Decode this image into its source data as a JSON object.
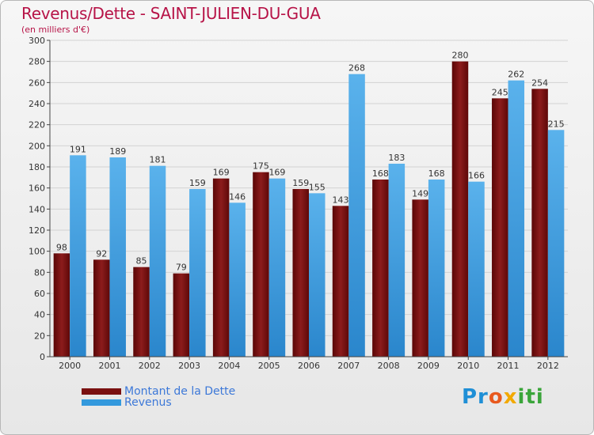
{
  "title": "Revenus/Dette - SAINT-JULIEN-DU-GUA",
  "subtitle": "(en milliers d'€)",
  "logo_text": "Proxiti",
  "colors": {
    "dette": "#7a1010",
    "revenus": "#3399dd",
    "title": "#b71448",
    "legend_text": "#3c78d8"
  },
  "legend": [
    {
      "label": "Montant de la Dette",
      "color": "#7a1010"
    },
    {
      "label": "Revenus",
      "color": "#3399dd"
    }
  ],
  "chart_data": {
    "type": "bar",
    "title": "Revenus/Dette - SAINT-JULIEN-DU-GUA",
    "subtitle": "(en milliers d'€)",
    "xlabel": "",
    "ylabel": "",
    "ylim": [
      0,
      300
    ],
    "yticks": [
      0,
      20,
      40,
      60,
      80,
      100,
      120,
      140,
      160,
      180,
      200,
      220,
      240,
      260,
      280,
      300
    ],
    "grid": true,
    "legend_position": "bottom-left",
    "categories": [
      "2000",
      "2001",
      "2002",
      "2003",
      "2004",
      "2005",
      "2006",
      "2007",
      "2008",
      "2009",
      "2010",
      "2011",
      "2012"
    ],
    "series": [
      {
        "name": "Montant de la Dette",
        "values": [
          98,
          92,
          85,
          79,
          169,
          175,
          159,
          143,
          168,
          149,
          280,
          245,
          254
        ]
      },
      {
        "name": "Revenus",
        "values": [
          191,
          189,
          181,
          159,
          146,
          169,
          155,
          268,
          183,
          168,
          166,
          262,
          215
        ]
      }
    ]
  }
}
